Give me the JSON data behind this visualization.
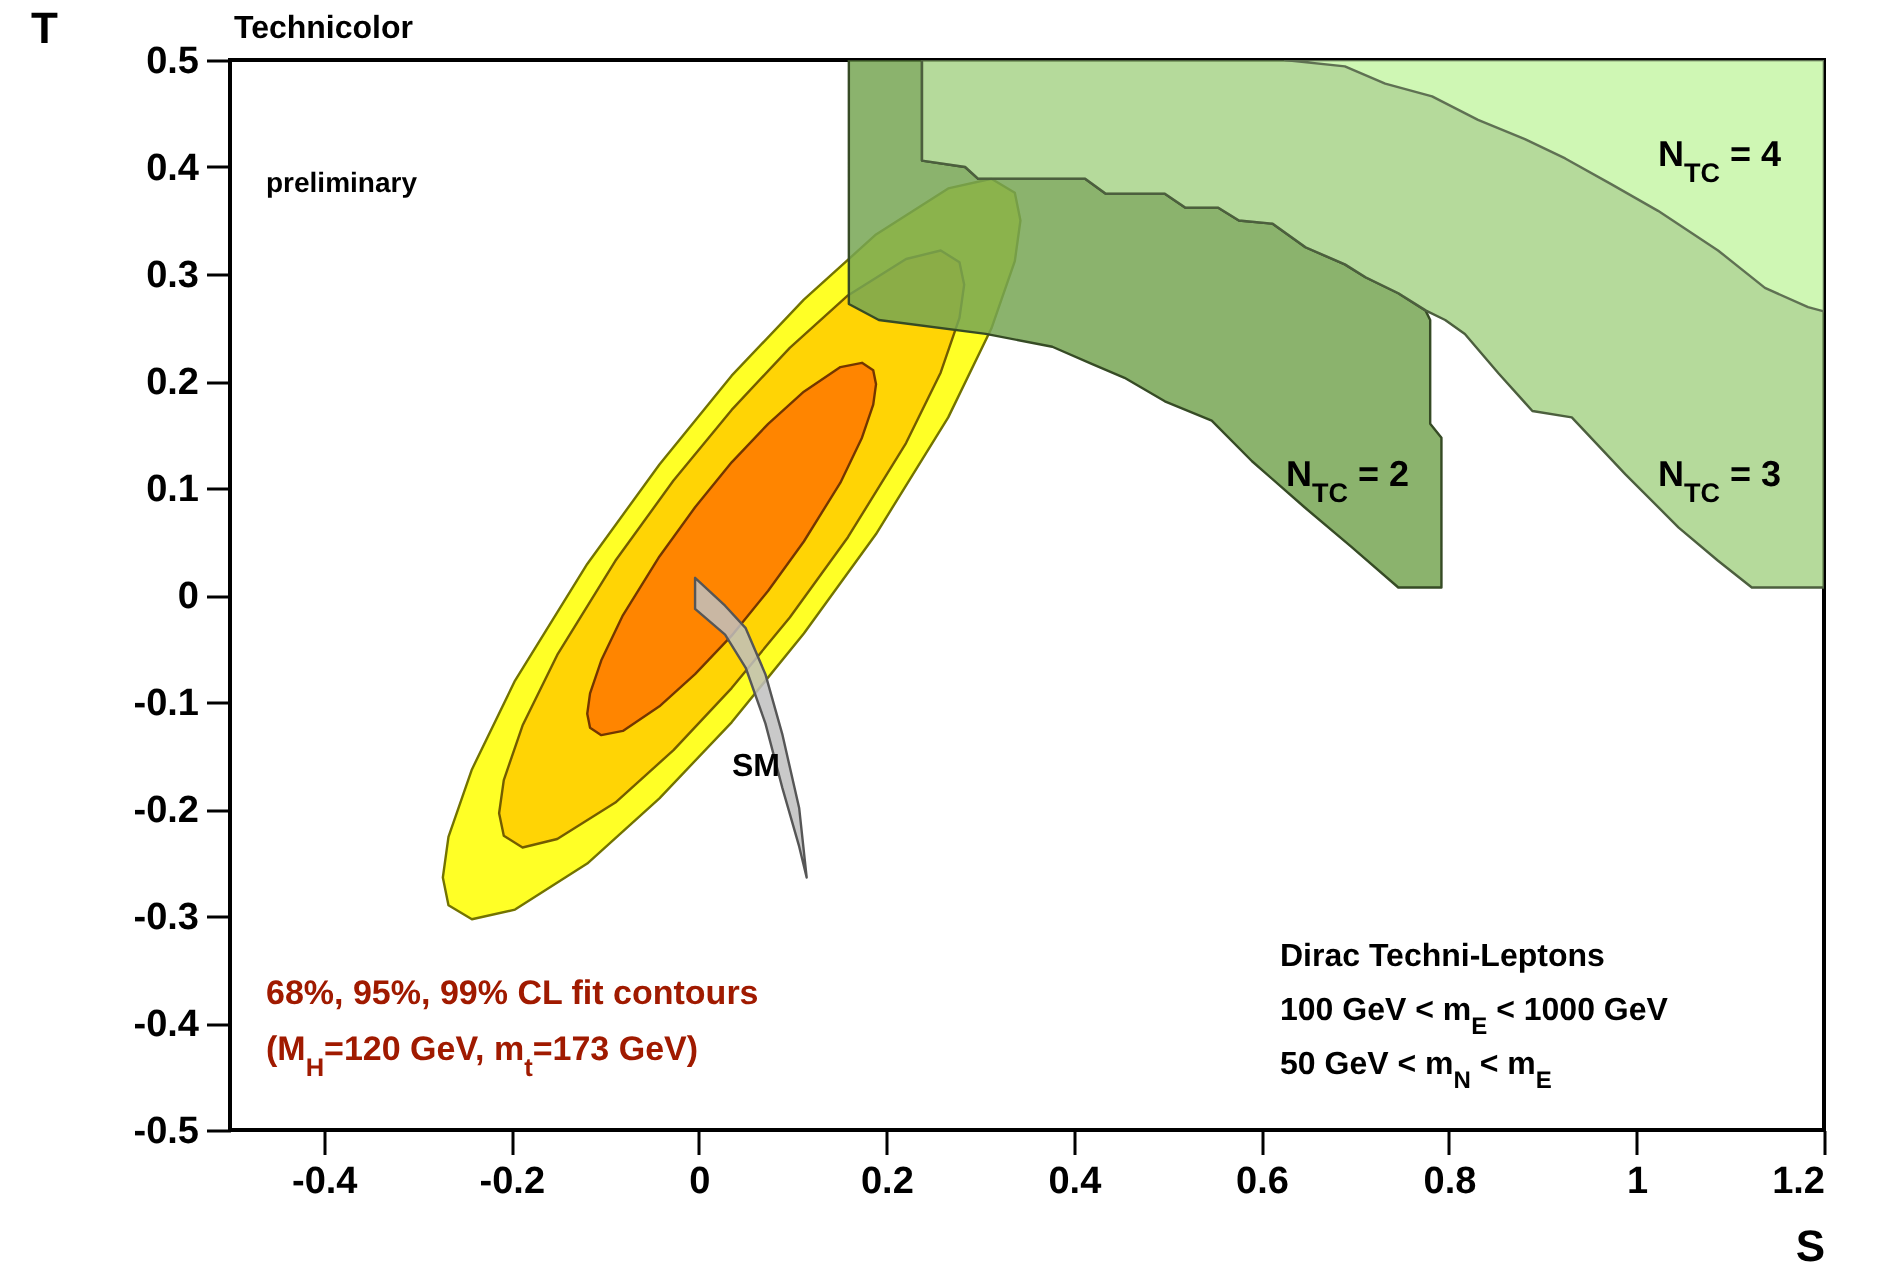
{
  "chart_data": {
    "type": "area",
    "title": "Technicolor",
    "xlabel": "S",
    "ylabel": "T",
    "xlim": [
      -0.5,
      1.2
    ],
    "ylim": [
      -0.5,
      0.5
    ],
    "xticks": [
      -0.4,
      -0.2,
      0,
      0.2,
      0.4,
      0.6,
      0.8,
      1,
      1.2
    ],
    "yticks": [
      -0.5,
      -0.4,
      -0.3,
      -0.2,
      -0.1,
      0,
      0.1,
      0.2,
      0.3,
      0.4,
      0.5
    ],
    "series": [
      {
        "color": "#ffff00",
        "x": [
          -0.273,
          -0.267,
          -0.242,
          -0.196,
          -0.119,
          -0.042,
          0.035,
          0.112,
          0.189,
          0.266,
          0.312,
          0.337,
          0.343,
          0.337,
          0.312,
          0.266,
          0.189,
          0.112,
          0.035,
          -0.042,
          -0.119,
          -0.196,
          -0.242,
          -0.267
        ],
        "values": [
          -0.264,
          -0.29,
          -0.303,
          -0.294,
          -0.251,
          -0.19,
          -0.119,
          -0.036,
          0.057,
          0.166,
          0.249,
          0.312,
          0.35,
          0.376,
          0.389,
          0.38,
          0.337,
          0.276,
          0.205,
          0.122,
          0.029,
          -0.08,
          -0.163,
          -0.226
        ]
      },
      {
        "color": "#ffcc00",
        "x": [
          -0.213,
          -0.208,
          -0.188,
          -0.151,
          -0.089,
          -0.027,
          0.035,
          0.097,
          0.159,
          0.221,
          0.258,
          0.278,
          0.283,
          0.278,
          0.258,
          0.221,
          0.159,
          0.097,
          0.035,
          -0.027,
          -0.089,
          -0.151,
          -0.188,
          -0.208
        ],
        "values": [
          -0.204,
          -0.225,
          -0.236,
          -0.228,
          -0.194,
          -0.145,
          -0.087,
          -0.021,
          0.054,
          0.142,
          0.208,
          0.259,
          0.29,
          0.311,
          0.322,
          0.314,
          0.28,
          0.231,
          0.173,
          0.107,
          0.032,
          -0.056,
          -0.122,
          -0.173
        ]
      },
      {
        "color": "#ff7700",
        "x": [
          -0.119,
          -0.116,
          -0.104,
          -0.081,
          -0.042,
          -0.004,
          0.035,
          0.074,
          0.112,
          0.151,
          0.174,
          0.186,
          0.189,
          0.186,
          0.174,
          0.151,
          0.112,
          0.074,
          0.035,
          -0.004,
          -0.042,
          -0.081,
          -0.104,
          -0.116
        ],
        "values": [
          -0.111,
          -0.124,
          -0.131,
          -0.127,
          -0.104,
          -0.074,
          -0.038,
          0.004,
          0.05,
          0.105,
          0.147,
          0.178,
          0.197,
          0.21,
          0.217,
          0.213,
          0.19,
          0.16,
          0.124,
          0.082,
          0.036,
          -0.019,
          -0.061,
          -0.092
        ]
      },
      {
        "color": "#77a653",
        "x": [
          0.16,
          0.192,
          0.306,
          0.377,
          0.419,
          0.454,
          0.497,
          0.547,
          0.59,
          0.646,
          0.696,
          0.746,
          0.792,
          0.792,
          0.78,
          0.78,
          0.775,
          0.746,
          0.711,
          0.689,
          0.647,
          0.612,
          0.576,
          0.554,
          0.519,
          0.497,
          0.434,
          0.412,
          0.298,
          0.284,
          0.238,
          0.238,
          0.16
        ],
        "values": [
          0.272,
          0.257,
          0.244,
          0.232,
          0.216,
          0.203,
          0.181,
          0.163,
          0.125,
          0.082,
          0.045,
          0.007,
          0.007,
          0.147,
          0.16,
          0.257,
          0.266,
          0.282,
          0.297,
          0.309,
          0.325,
          0.347,
          0.35,
          0.362,
          0.362,
          0.375,
          0.375,
          0.389,
          0.389,
          0.4,
          0.406,
          0.5,
          0.5
        ]
      },
      {
        "color": "#a8d48a",
        "x": [
          0.238,
          0.284,
          0.298,
          0.412,
          0.434,
          0.497,
          0.519,
          0.554,
          0.576,
          0.612,
          0.647,
          0.689,
          0.711,
          0.746,
          0.775,
          0.796,
          0.817,
          0.853,
          0.889,
          0.931,
          0.988,
          1.045,
          1.087,
          1.123,
          1.183,
          1.2,
          1.2,
          0.238
        ],
        "values": [
          0.406,
          0.4,
          0.389,
          0.389,
          0.375,
          0.375,
          0.362,
          0.362,
          0.35,
          0.347,
          0.325,
          0.309,
          0.297,
          0.282,
          0.266,
          0.257,
          0.244,
          0.207,
          0.172,
          0.166,
          0.113,
          0.063,
          0.032,
          0.007,
          0.007,
          0.007,
          0.5,
          0.5
        ]
      },
      {
        "color": "#d4fcb8",
        "x": [
          0.625,
          0.689,
          0.732,
          0.782,
          0.831,
          0.881,
          0.924,
          0.973,
          1.023,
          1.087,
          1.137,
          1.183,
          1.2,
          1.2
        ],
        "values": [
          0.5,
          0.494,
          0.478,
          0.466,
          0.444,
          0.426,
          0.408,
          0.384,
          0.359,
          0.322,
          0.287,
          0.269,
          0.265,
          0.5
        ]
      },
      {
        "color": "#c0c0c0",
        "x": [
          -0.004,
          0.028,
          0.05,
          0.071,
          0.089,
          0.107,
          0.115,
          0.107,
          0.089,
          0.071,
          0.05,
          0.028,
          -0.004
        ],
        "values": [
          -0.013,
          -0.037,
          -0.068,
          -0.12,
          -0.18,
          -0.235,
          -0.264,
          -0.199,
          -0.13,
          -0.074,
          -0.031,
          -0.01,
          0.016
        ]
      }
    ],
    "annotations": [
      "preliminary",
      "68%, 95%, 99% CL fit contours",
      "(M$_{H}$=120 GeV, m$_{t}$=173 GeV)",
      "Dirac Techni-Leptons",
      "100 GeV < m$_{E}$ < 1000 GeV",
      "50 GeV < m$_{N}$ < m$_{E}$",
      "N$_{TC}$ = 2",
      "N$_{TC}$ = 3",
      "N$_{TC}$ = 4",
      "SM"
    ]
  }
}
